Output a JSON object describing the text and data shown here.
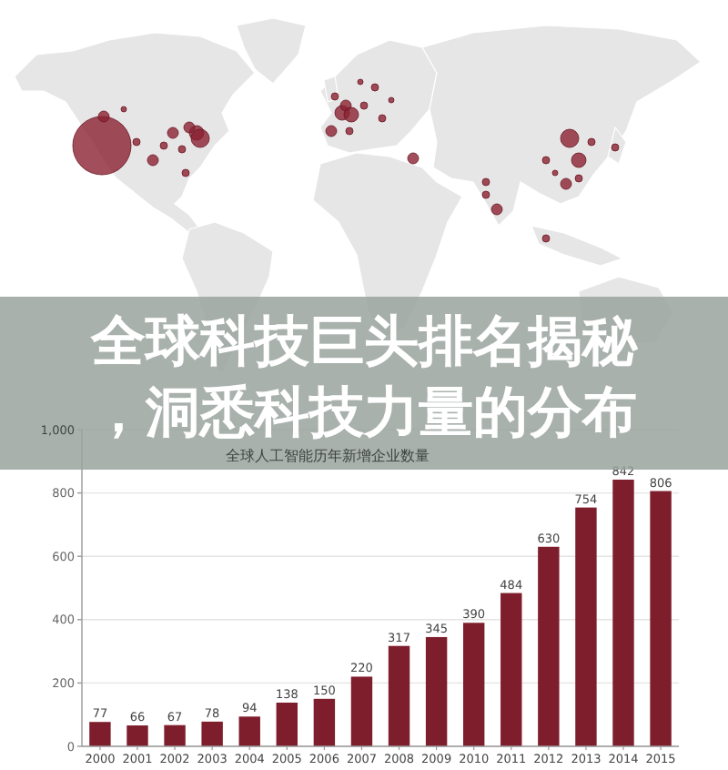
{
  "chart_data": {
    "type": "bar",
    "title": "全球科技巨头排名揭秘，洞悉科技力量的分布",
    "subtitle": "全球人工智能历年新增企业数量",
    "categories": [
      "2000",
      "2001",
      "2002",
      "2003",
      "2004",
      "2005",
      "2006",
      "2007",
      "2008",
      "2009",
      "2010",
      "2011",
      "2012",
      "2013",
      "2014",
      "2015"
    ],
    "values": [
      77,
      66,
      67,
      78,
      94,
      138,
      150,
      220,
      317,
      345,
      390,
      484,
      630,
      754,
      842,
      806
    ],
    "color": "#7e1e2c",
    "ylim": [
      0,
      1000
    ],
    "yticks": [
      0,
      200,
      400,
      600,
      800,
      {
        "value": 1000,
        "label": "1,000"
      }
    ],
    "grid": "y",
    "data_labels": true
  }
}
